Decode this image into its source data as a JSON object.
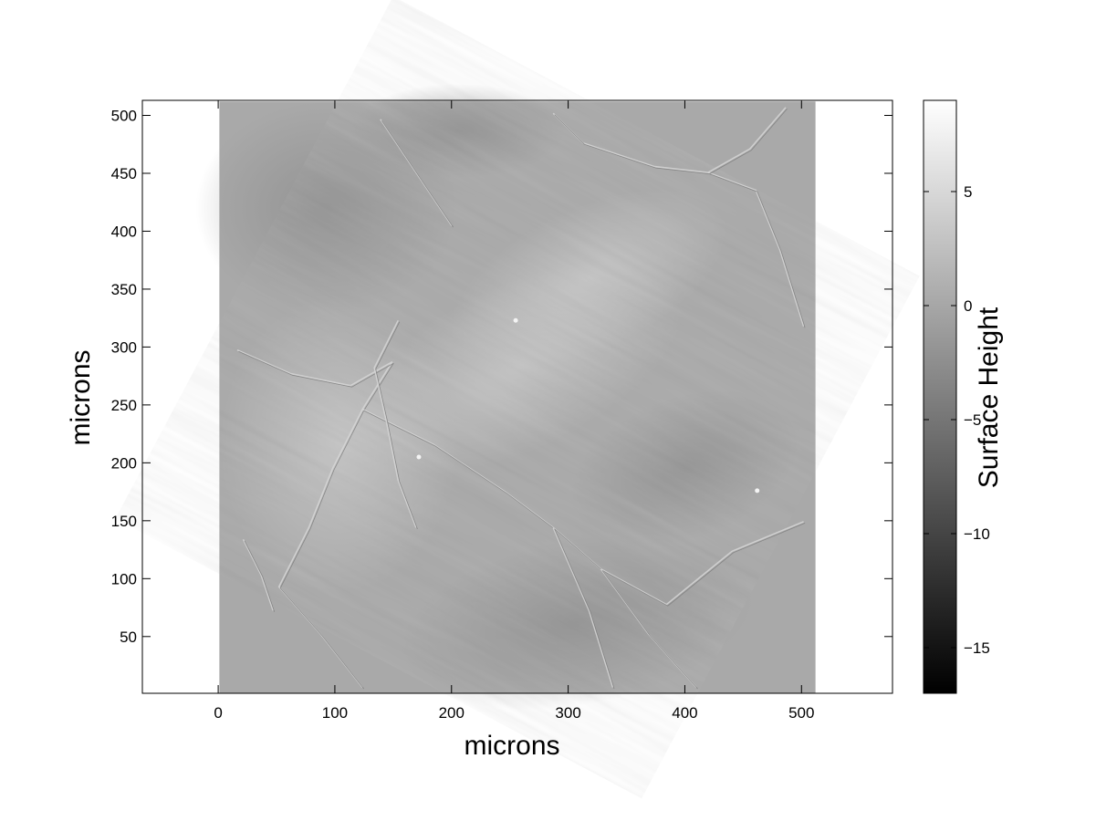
{
  "chart_data": {
    "type": "heatmap",
    "title": "",
    "xlabel": "microns",
    "ylabel": "microns",
    "xlim": [
      -65,
      578
    ],
    "ylim": [
      1,
      513
    ],
    "x_ticks": [
      0,
      100,
      200,
      300,
      400,
      500
    ],
    "y_ticks": [
      50,
      100,
      150,
      200,
      250,
      300,
      350,
      400,
      450,
      500
    ],
    "image_extent": {
      "x": [
        1,
        512
      ],
      "y": [
        1,
        512
      ]
    },
    "colormap": "gray",
    "colorbar": {
      "label": "Surface Height",
      "range": [
        -17,
        9
      ],
      "ticks": [
        -15,
        -10,
        -5,
        0,
        5
      ]
    },
    "grid": false,
    "features": [
      {
        "kind": "bright-particle",
        "x": 255,
        "y": 323
      },
      {
        "kind": "bright-particle",
        "x": 462,
        "y": 176
      },
      {
        "kind": "bright-particle",
        "x": 172,
        "y": 205
      }
    ]
  }
}
